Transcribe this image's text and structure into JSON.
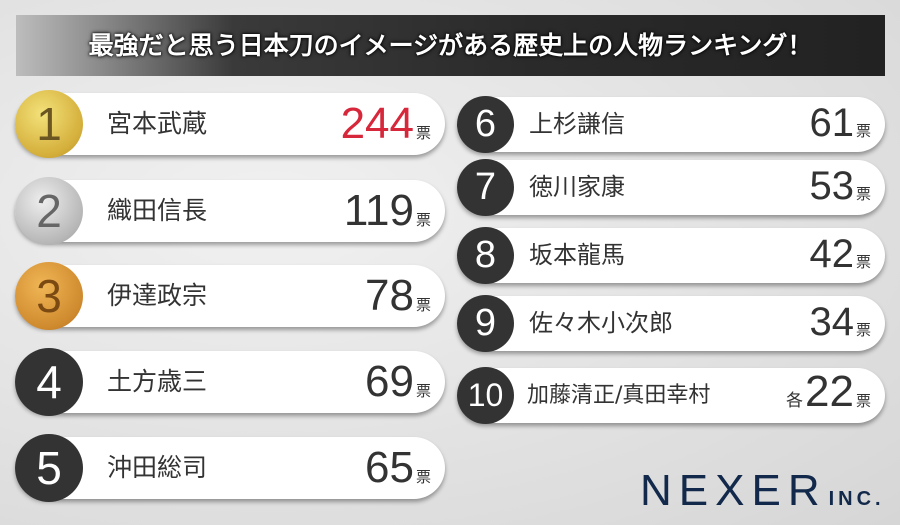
{
  "title": "最強だと思う日本刀のイメージがある歴史上の人物ランキング！",
  "unit": "票",
  "each_label": "各",
  "chart_data": {
    "type": "table",
    "title": "最強だと思う日本刀のイメージがある歴史上の人物ランキング！",
    "rows": [
      {
        "rank": "1",
        "name": "宮本武蔵",
        "votes": "244"
      },
      {
        "rank": "2",
        "name": "織田信長",
        "votes": "119"
      },
      {
        "rank": "3",
        "name": "伊達政宗",
        "votes": "78"
      },
      {
        "rank": "4",
        "name": "土方歳三",
        "votes": "69"
      },
      {
        "rank": "5",
        "name": "沖田総司",
        "votes": "65"
      },
      {
        "rank": "6",
        "name": "上杉謙信",
        "votes": "61"
      },
      {
        "rank": "7",
        "name": "徳川家康",
        "votes": "53"
      },
      {
        "rank": "8",
        "name": "坂本龍馬",
        "votes": "42"
      },
      {
        "rank": "9",
        "name": "佐々木小次郎",
        "votes": "34"
      },
      {
        "rank": "10",
        "name": "加藤清正/真田幸村",
        "votes": "22"
      }
    ]
  },
  "colors": {
    "highlight": "#d7273a",
    "badge_dark": "#333333",
    "gold": "#d4ae3a",
    "silver": "#b7b7b7",
    "bronze": "#cf8a2e",
    "logo": "#13294b"
  },
  "logo": {
    "main": "NEXER",
    "suffix": "INC."
  }
}
